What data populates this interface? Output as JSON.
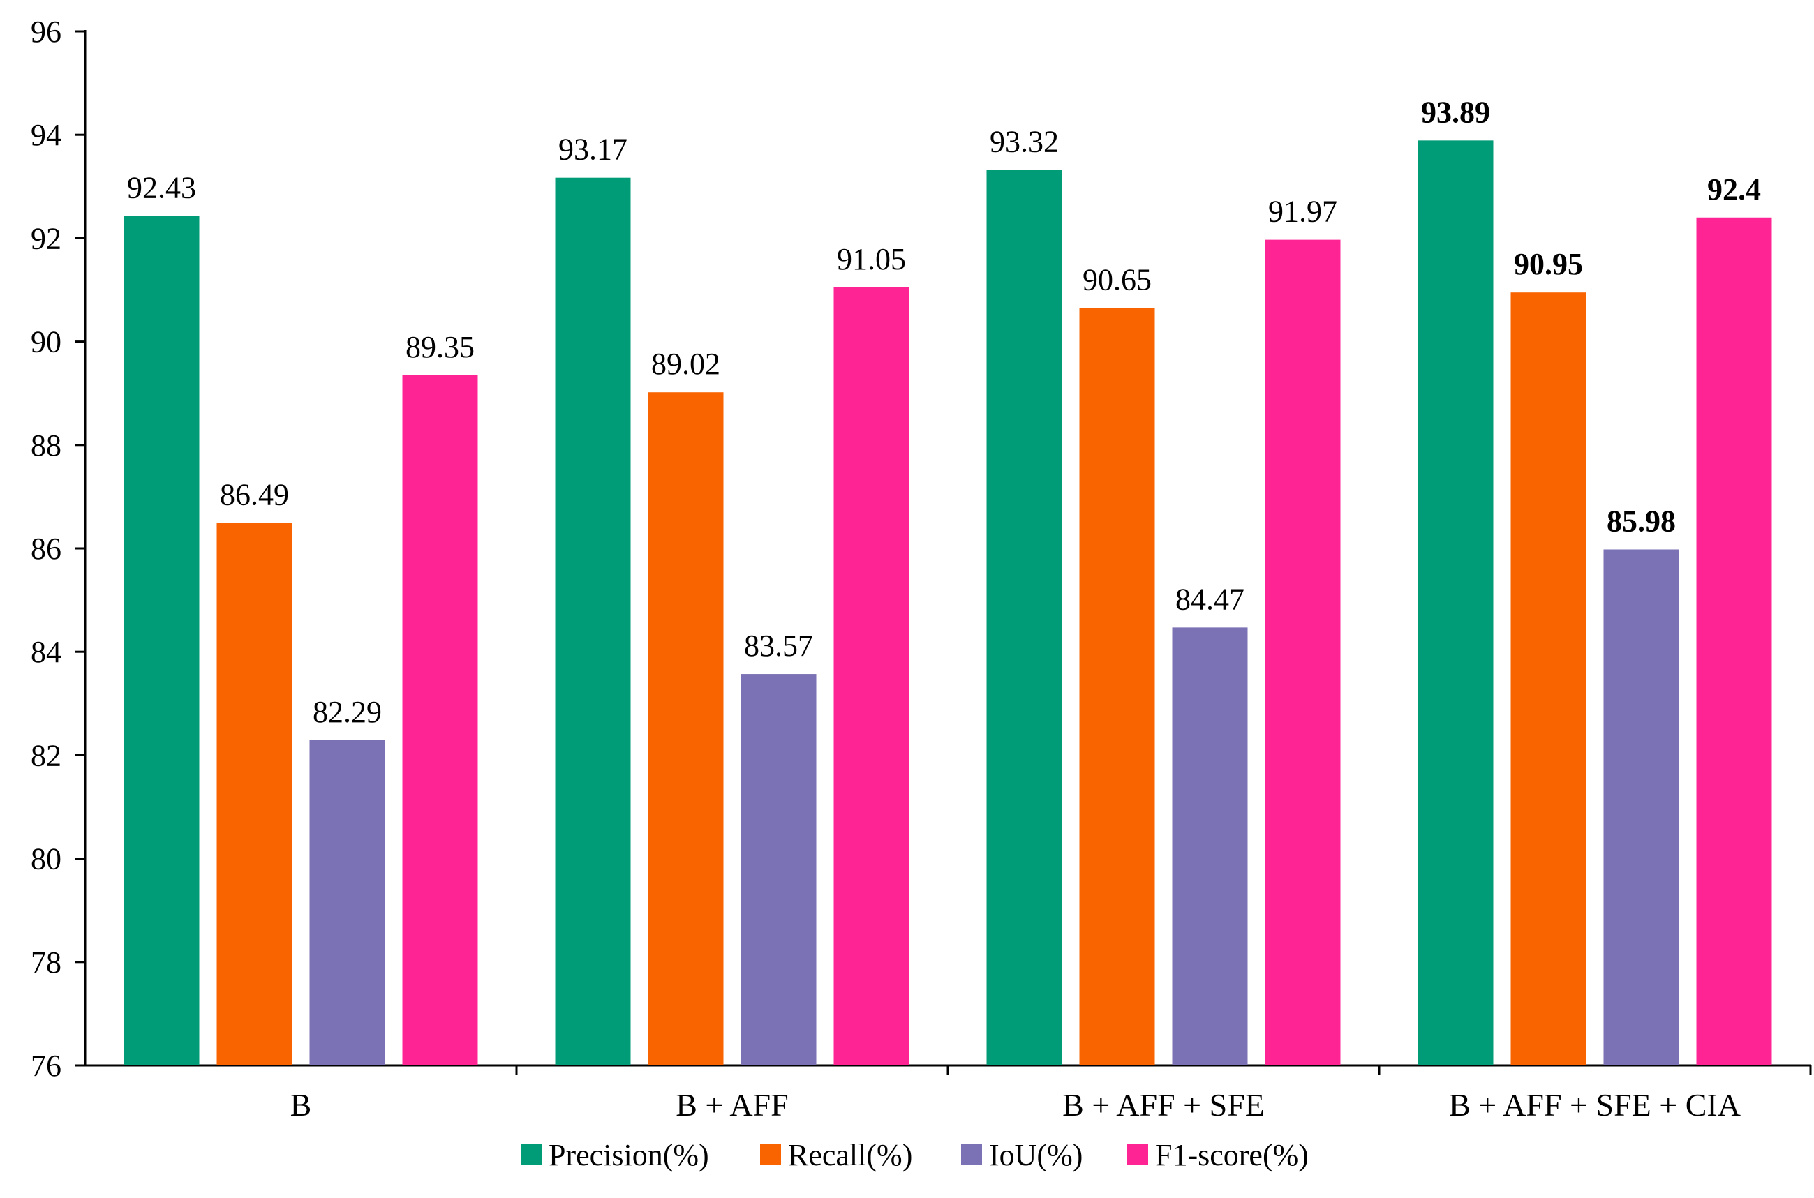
{
  "chart_data": {
    "type": "bar",
    "title": "",
    "xlabel": "",
    "ylabel": "",
    "ylim": [
      76,
      96
    ],
    "yticks": [
      76,
      78,
      80,
      82,
      84,
      86,
      88,
      90,
      92,
      94,
      96
    ],
    "grid": false,
    "legend_position": "bottom",
    "categories": [
      "B",
      "B + AFF",
      "B + AFF + SFE",
      "B + AFF + SFE + CIA"
    ],
    "series": [
      {
        "name": "Precision(%)",
        "color": "#009B77",
        "values": [
          92.43,
          93.17,
          93.32,
          93.89
        ],
        "labels": [
          "92.43",
          "93.17",
          "93.32",
          "93.89"
        ]
      },
      {
        "name": "Recall(%)",
        "color": "#F96300",
        "values": [
          86.49,
          89.02,
          90.65,
          90.95
        ],
        "labels": [
          "86.49",
          "89.02",
          "90.65",
          "90.95"
        ]
      },
      {
        "name": "IoU(%)",
        "color": "#7B71B5",
        "values": [
          82.29,
          83.57,
          84.47,
          85.98
        ],
        "labels": [
          "82.29",
          "83.57",
          "84.47",
          "85.98"
        ]
      },
      {
        "name": "F1-score(%)",
        "color": "#FF2494",
        "values": [
          89.35,
          91.05,
          91.97,
          92.4
        ],
        "labels": [
          "89.35",
          "91.05",
          "91.97",
          "92.4"
        ]
      }
    ],
    "bold_labels_category": "B + AFF + SFE + CIA"
  }
}
